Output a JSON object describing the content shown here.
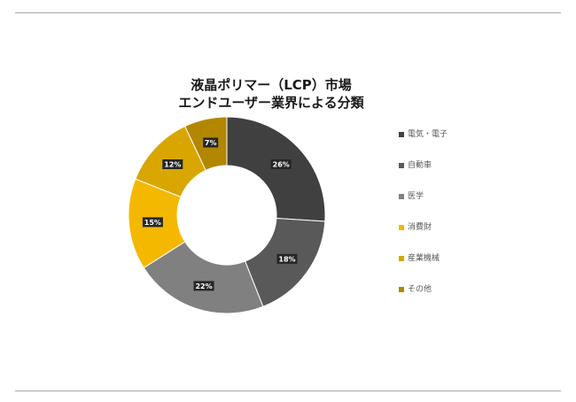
{
  "chart_data": {
    "type": "pie",
    "title_lines": [
      "液晶ポリマー（LCP）市場",
      "エンドユーザー業界による分類"
    ],
    "categories": [
      "電気・電子",
      "自動車",
      "医学",
      "消費財",
      "産業機械",
      "その他"
    ],
    "values": [
      26,
      18,
      22,
      15,
      12,
      7
    ],
    "labels": [
      "26%",
      "18%",
      "22%",
      "15%",
      "12%",
      "7%"
    ],
    "colors": [
      "#404040",
      "#595959",
      "#808080",
      "#f5b800",
      "#d9a600",
      "#b38600"
    ],
    "donut": true,
    "legend_position": "right"
  }
}
